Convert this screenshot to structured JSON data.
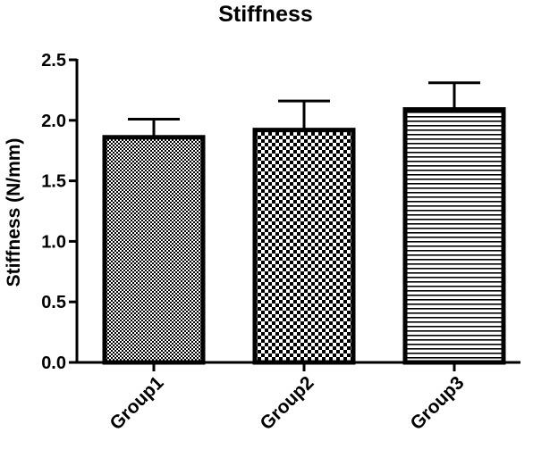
{
  "chart_data": {
    "type": "bar",
    "title": "Stiffness",
    "xlabel": "",
    "ylabel": "Stiffness (N/mm)",
    "ylim": [
      0,
      2.5
    ],
    "yticks": [
      "0.0",
      "0.5",
      "1.0",
      "1.5",
      "2.0",
      "2.5"
    ],
    "categories": [
      "Group1",
      "Group2",
      "Group3"
    ],
    "values": [
      1.86,
      1.92,
      2.09
    ],
    "error_upper": [
      2.01,
      2.16,
      2.31
    ],
    "patterns": [
      "fine-grid",
      "checkerboard",
      "horizontal-stripes"
    ],
    "grid": false,
    "legend": "none",
    "colors": {
      "bar_stroke": "#000000",
      "pattern_ink": "#000000",
      "background": "#ffffff"
    }
  }
}
